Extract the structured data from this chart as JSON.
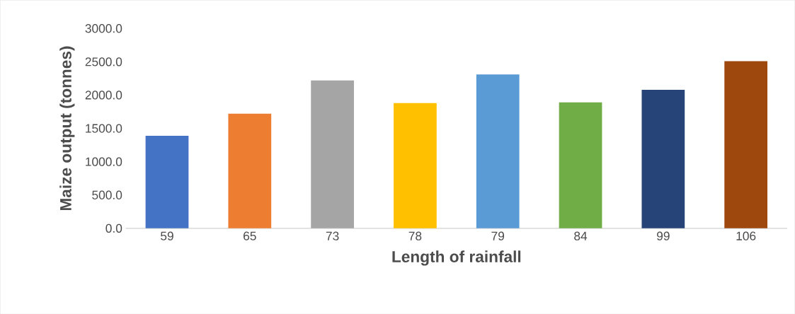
{
  "chart_data": {
    "type": "bar",
    "xlabel": "Length of rainfall",
    "ylabel": "Maize output (tonnes)",
    "categories": [
      "59",
      "65",
      "73",
      "78",
      "79",
      "84",
      "99",
      "106"
    ],
    "values": [
      1390,
      1720,
      2220,
      1880,
      2310,
      1890,
      2080,
      2510
    ],
    "colors": [
      "#4472c4",
      "#ed7d31",
      "#a5a5a5",
      "#ffc000",
      "#5b9bd5",
      "#70ad47",
      "#264478",
      "#9e480e"
    ],
    "ylim": [
      0,
      3000
    ],
    "yticks": [
      {
        "value": 0,
        "label": "0.0"
      },
      {
        "value": 500,
        "label": "500.0"
      },
      {
        "value": 1000,
        "label": "1000.0"
      },
      {
        "value": 1500,
        "label": "1500.0"
      },
      {
        "value": 2000,
        "label": "2000.0"
      },
      {
        "value": 2500,
        "label": "2500.0"
      },
      {
        "value": 3000,
        "label": "3000.0"
      }
    ],
    "grid": false
  }
}
